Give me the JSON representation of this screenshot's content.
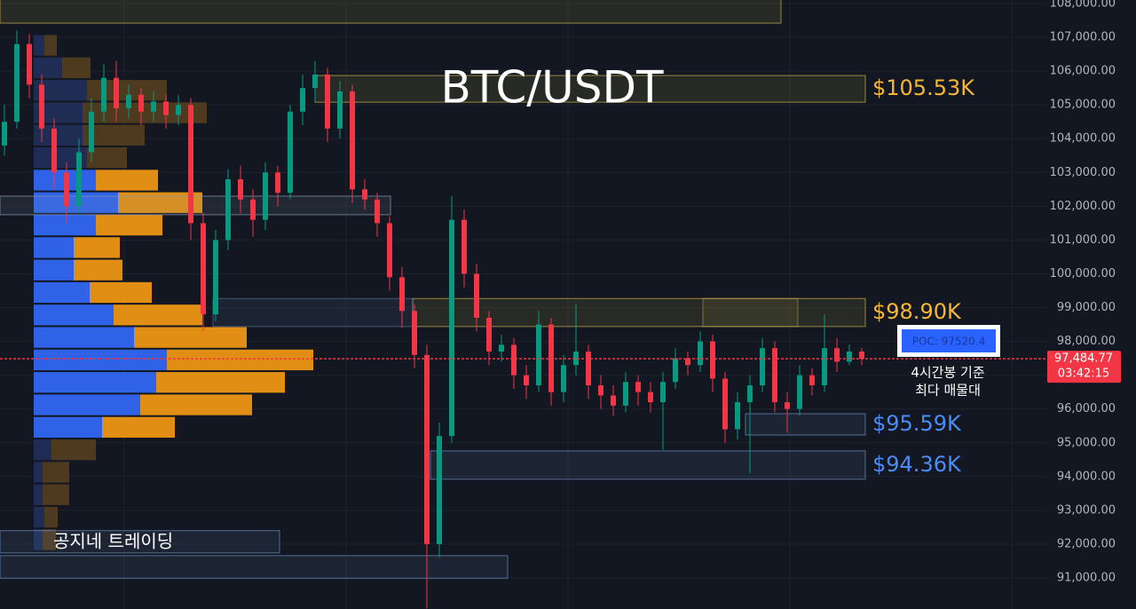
{
  "chart_data": {
    "type": "candlestick",
    "title": "BTC/USDT",
    "ylim": [
      90080,
      108105
    ],
    "yticks": [
      {
        "value": 91000,
        "label": "91,000.00"
      },
      {
        "value": 92000,
        "label": "92,000.00"
      },
      {
        "value": 93000,
        "label": "93,000.00"
      },
      {
        "value": 94000,
        "label": "94,000.00"
      },
      {
        "value": 95000,
        "label": "95,000.00"
      },
      {
        "value": 96000,
        "label": "96,000.00"
      },
      {
        "value": 97000,
        "label": "97,000.00"
      },
      {
        "value": 98000,
        "label": "98,000.00"
      },
      {
        "value": 99000,
        "label": "99,000.00"
      },
      {
        "value": 100000,
        "label": "100,000.00"
      },
      {
        "value": 101000,
        "label": "101,000.00"
      },
      {
        "value": 102000,
        "label": "102,000.00"
      },
      {
        "value": 103000,
        "label": "103,000.00"
      },
      {
        "value": 104000,
        "label": "104,000.00"
      },
      {
        "value": 105000,
        "label": "105,000.00"
      },
      {
        "value": 106000,
        "label": "106,000.00"
      },
      {
        "value": 107000,
        "label": "107,000.00"
      },
      {
        "value": 108000,
        "label": "108,000.00"
      }
    ],
    "grid": true,
    "up_color": "#089981",
    "down_color": "#f23645",
    "open": [
      103800,
      104500,
      106800,
      105600,
      104300,
      103000,
      102000,
      103600,
      104800,
      105800,
      104900,
      105300,
      104800,
      105100,
      104700,
      105000,
      101500,
      98800,
      101000,
      102800,
      102200,
      101600,
      103000,
      102400,
      104800,
      105500,
      105900,
      104300,
      105400,
      102500,
      102200,
      101500,
      99900,
      98900,
      97600,
      92000,
      95200,
      101600,
      100000,
      98700,
      97700,
      97900,
      97000,
      96700,
      98500,
      96500,
      97300,
      97700,
      96700,
      96400,
      96100,
      96800,
      96500,
      96200,
      96800,
      97500,
      97300,
      98000,
      96900,
      95400,
      96200,
      96700,
      97800,
      96200,
      96000,
      97000,
      96700,
      97800,
      97400,
      97700
    ],
    "high": [
      105000,
      107200,
      107100,
      105900,
      104600,
      103300,
      104000,
      105200,
      106200,
      106300,
      105600,
      105500,
      105400,
      105300,
      105300,
      105200,
      101800,
      101300,
      103100,
      103200,
      102500,
      103300,
      103200,
      105000,
      105900,
      106300,
      106100,
      105700,
      105600,
      102800,
      102400,
      101700,
      100200,
      99100,
      97900,
      95600,
      102300,
      101900,
      100300,
      98900,
      98200,
      98100,
      97300,
      98900,
      98700,
      97600,
      99100,
      97900,
      97000,
      96700,
      97100,
      97000,
      96800,
      97100,
      97800,
      97700,
      98300,
      98200,
      97100,
      96500,
      97000,
      98100,
      98000,
      96500,
      97300,
      97200,
      98800,
      98100,
      97900,
      97800
    ],
    "low": [
      103500,
      104300,
      105200,
      103900,
      102500,
      101500,
      101800,
      103300,
      104500,
      104500,
      104600,
      104400,
      104500,
      104300,
      104400,
      101000,
      98300,
      98600,
      100700,
      101800,
      101100,
      101300,
      102000,
      102200,
      104400,
      105100,
      103900,
      104000,
      102100,
      101900,
      101100,
      99500,
      98400,
      97200,
      90100,
      91600,
      95000,
      99600,
      98300,
      97300,
      97400,
      96600,
      96300,
      96500,
      96100,
      96200,
      97000,
      96300,
      96000,
      95800,
      95900,
      96100,
      95900,
      94800,
      96600,
      97000,
      97100,
      96500,
      95000,
      95100,
      94100,
      96500,
      95900,
      95300,
      95800,
      96400,
      96500,
      97100,
      97300,
      97300
    ],
    "close": [
      104500,
      106800,
      105600,
      104300,
      103000,
      102000,
      103600,
      104800,
      105800,
      104900,
      105300,
      104800,
      105100,
      104700,
      105000,
      101500,
      98800,
      101000,
      102800,
      102200,
      101600,
      103000,
      102400,
      104800,
      105500,
      105900,
      104300,
      105400,
      102500,
      102200,
      101500,
      99900,
      98900,
      97600,
      92000,
      95200,
      101600,
      100000,
      98700,
      97700,
      97900,
      97000,
      96700,
      98500,
      96500,
      97300,
      97700,
      96700,
      96400,
      96100,
      96800,
      96500,
      96200,
      96800,
      97500,
      97300,
      98000,
      96900,
      95400,
      96200,
      96700,
      97800,
      96200,
      96000,
      97000,
      96700,
      97800,
      97400,
      97700,
      97485
    ],
    "volume_profile": {
      "bins": [
        91800,
        92465,
        93130,
        93795,
        94460,
        95125,
        95790,
        96455,
        97120,
        97785,
        98450,
        99115,
        99780,
        100445,
        101110,
        101775,
        102440,
        103105,
        103770,
        104435,
        105100,
        105765,
        106430,
        107095
      ],
      "buy": [
        10,
        12,
        10,
        10,
        20,
        77,
        120,
        138,
        150,
        113,
        90,
        63,
        45,
        45,
        70,
        95,
        70,
        60,
        55,
        55,
        60,
        32,
        12
      ],
      "sell": [
        15,
        15,
        30,
        30,
        50,
        82,
        126,
        145,
        165,
        127,
        100,
        70,
        55,
        52,
        75,
        95,
        70,
        45,
        70,
        140,
        90,
        32,
        14
      ],
      "value_area": [
        95125,
        103105
      ],
      "buy_color": "#2f62e6",
      "sell_color": "#e08e14",
      "buy_dim_color": "#1f2c54",
      "sell_dim_color": "#4e3a1e"
    },
    "zones": [
      {
        "high": 108300,
        "low": 107420,
        "color": "#c9b44a"
      },
      {
        "high": 105870,
        "low": 105080,
        "color": "#c9b44a",
        "label": "$105.53K",
        "label_color": "#f5b731"
      },
      {
        "high": 102300,
        "low": 101750,
        "color": "#8a9bb5"
      },
      {
        "high": 99270,
        "low": 98440,
        "color": "#c9b44a",
        "label": "$98.90K",
        "label_color": "#f5b731"
      },
      {
        "high": 95860,
        "low": 95230,
        "color": "#6f8fc0",
        "label": "$95.59K",
        "label_color": "#4a8cf5"
      },
      {
        "high": 94760,
        "low": 93920,
        "color": "#6f8fc0",
        "label": "$94.36K",
        "label_color": "#4a8cf5"
      },
      {
        "high": 92400,
        "low": 91740,
        "color": "#6f8fc0"
      },
      {
        "high": 91660,
        "low": 90990,
        "color": "#6f8fc0"
      }
    ],
    "last_price": {
      "value": 97484.77,
      "label": "97,484.77",
      "timer": "03:42:15",
      "color": "#f23645"
    },
    "poc_label": "POC: 97520.4",
    "annotation": [
      "4시간봉 기준",
      "최다 매물대"
    ],
    "watermark": "공지네 트레이딩"
  }
}
